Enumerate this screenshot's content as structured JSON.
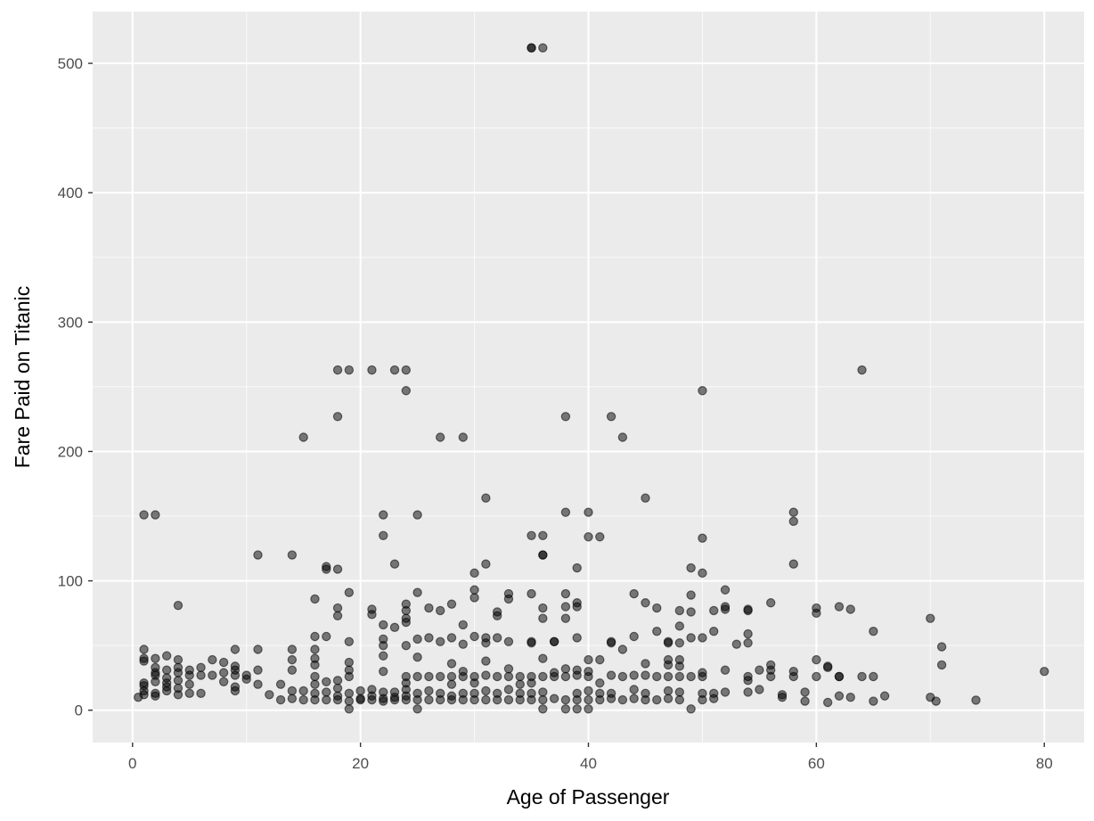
{
  "chart_data": {
    "type": "scatter",
    "title": "",
    "xlabel": "Age of Passenger",
    "ylabel": "Fare Paid on Titanic",
    "xlim": [
      -3.5,
      83.5
    ],
    "ylim": [
      -25,
      540
    ],
    "x_ticks": [
      0,
      20,
      40,
      60,
      80
    ],
    "y_ticks": [
      0,
      100,
      200,
      300,
      400,
      500
    ],
    "x_tick_labels": [
      "0",
      "20",
      "40",
      "60",
      "80"
    ],
    "y_tick_labels": [
      "0",
      "100",
      "200",
      "300",
      "400",
      "500"
    ],
    "grid": true,
    "legend": "none",
    "colors": {
      "panel": "#ebebeb",
      "grid_major": "#ffffff",
      "point": "#000000"
    },
    "point_alpha": 0.5,
    "points": [
      [
        35,
        512
      ],
      [
        35,
        512
      ],
      [
        36,
        512
      ],
      [
        18,
        263
      ],
      [
        19,
        263
      ],
      [
        21,
        263
      ],
      [
        23,
        263
      ],
      [
        24,
        263
      ],
      [
        64,
        263
      ],
      [
        24,
        247
      ],
      [
        50,
        247
      ],
      [
        18,
        227
      ],
      [
        38,
        227
      ],
      [
        42,
        227
      ],
      [
        15,
        211
      ],
      [
        27,
        211
      ],
      [
        29,
        211
      ],
      [
        43,
        211
      ],
      [
        31,
        164
      ],
      [
        45,
        164
      ],
      [
        1,
        151
      ],
      [
        2,
        151
      ],
      [
        22,
        151
      ],
      [
        25,
        151
      ],
      [
        38,
        153
      ],
      [
        40,
        153
      ],
      [
        58,
        153
      ],
      [
        58,
        146
      ],
      [
        22,
        135
      ],
      [
        35,
        135
      ],
      [
        36,
        135
      ],
      [
        40,
        134
      ],
      [
        41,
        134
      ],
      [
        50,
        133
      ],
      [
        11,
        120
      ],
      [
        14,
        120
      ],
      [
        36,
        120
      ],
      [
        36,
        120
      ],
      [
        23,
        113
      ],
      [
        31,
        113
      ],
      [
        58,
        113
      ],
      [
        17,
        111
      ],
      [
        17,
        109
      ],
      [
        18,
        109
      ],
      [
        39,
        110
      ],
      [
        49,
        110
      ],
      [
        30,
        106
      ],
      [
        50,
        106
      ],
      [
        52,
        93
      ],
      [
        30,
        93
      ],
      [
        19,
        91
      ],
      [
        25,
        91
      ],
      [
        44,
        90
      ],
      [
        49,
        89
      ],
      [
        30,
        87
      ],
      [
        16,
        86
      ],
      [
        33,
        90
      ],
      [
        33,
        86
      ],
      [
        35,
        90
      ],
      [
        38,
        90
      ],
      [
        39,
        83
      ],
      [
        39,
        80
      ],
      [
        45,
        83
      ],
      [
        4,
        81
      ],
      [
        18,
        79
      ],
      [
        18,
        73
      ],
      [
        21,
        78
      ],
      [
        21,
        74
      ],
      [
        24,
        82
      ],
      [
        24,
        77
      ],
      [
        24,
        71
      ],
      [
        24,
        68
      ],
      [
        26,
        79
      ],
      [
        27,
        77
      ],
      [
        28,
        82
      ],
      [
        32,
        76
      ],
      [
        32,
        73
      ],
      [
        36,
        79
      ],
      [
        36,
        71
      ],
      [
        38,
        80
      ],
      [
        38,
        71
      ],
      [
        46,
        79
      ],
      [
        48,
        77
      ],
      [
        49,
        76
      ],
      [
        51,
        77
      ],
      [
        52,
        78
      ],
      [
        52,
        80
      ],
      [
        54,
        78
      ],
      [
        54,
        77
      ],
      [
        56,
        83
      ],
      [
        60,
        79
      ],
      [
        60,
        75
      ],
      [
        62,
        80
      ],
      [
        63,
        78
      ],
      [
        70,
        71
      ],
      [
        22,
        66
      ],
      [
        29,
        66
      ],
      [
        42,
        52
      ],
      [
        42,
        53
      ],
      [
        43,
        47
      ],
      [
        44,
        57
      ],
      [
        46,
        61
      ],
      [
        47,
        53
      ],
      [
        47,
        52
      ],
      [
        48,
        52
      ],
      [
        48,
        65
      ],
      [
        49,
        56
      ],
      [
        50,
        56
      ],
      [
        51,
        61
      ],
      [
        53,
        51
      ],
      [
        54,
        52
      ],
      [
        54,
        59
      ],
      [
        65,
        61
      ],
      [
        71,
        49
      ],
      [
        71,
        35
      ],
      [
        16,
        57
      ],
      [
        17,
        57
      ],
      [
        19,
        53
      ],
      [
        22,
        55
      ],
      [
        22,
        50
      ],
      [
        23,
        64
      ],
      [
        24,
        50
      ],
      [
        25,
        55
      ],
      [
        26,
        56
      ],
      [
        27,
        53
      ],
      [
        28,
        56
      ],
      [
        29,
        51
      ],
      [
        30,
        57
      ],
      [
        31,
        56
      ],
      [
        31,
        52
      ],
      [
        32,
        56
      ],
      [
        33,
        53
      ],
      [
        35,
        53
      ],
      [
        35,
        52
      ],
      [
        37,
        53
      ],
      [
        37,
        53
      ],
      [
        39,
        56
      ],
      [
        1,
        47
      ],
      [
        1,
        40
      ],
      [
        1,
        38
      ],
      [
        2,
        40
      ],
      [
        2,
        33
      ],
      [
        3,
        42
      ],
      [
        3,
        31
      ],
      [
        4,
        39
      ],
      [
        4,
        33
      ],
      [
        5,
        31
      ],
      [
        6,
        33
      ],
      [
        7,
        39
      ],
      [
        8,
        37
      ],
      [
        9,
        47
      ],
      [
        9,
        34
      ],
      [
        9,
        31
      ],
      [
        11,
        47
      ],
      [
        11,
        31
      ],
      [
        14,
        47
      ],
      [
        14,
        39
      ],
      [
        14,
        31
      ],
      [
        16,
        47
      ],
      [
        16,
        40
      ],
      [
        16,
        35
      ],
      [
        19,
        37
      ],
      [
        19,
        31
      ],
      [
        22,
        42
      ],
      [
        22,
        30
      ],
      [
        25,
        41
      ],
      [
        28,
        36
      ],
      [
        31,
        38
      ],
      [
        33,
        32
      ],
      [
        36,
        40
      ],
      [
        38,
        32
      ],
      [
        39,
        31
      ],
      [
        40,
        39
      ],
      [
        41,
        39
      ],
      [
        45,
        36
      ],
      [
        47,
        39
      ],
      [
        47,
        35
      ],
      [
        48,
        39
      ],
      [
        48,
        34
      ],
      [
        50,
        29
      ],
      [
        52,
        31
      ],
      [
        55,
        31
      ],
      [
        56,
        35
      ],
      [
        56,
        31
      ],
      [
        58,
        30
      ],
      [
        60,
        39
      ],
      [
        61,
        34
      ],
      [
        61,
        33
      ],
      [
        62,
        26
      ],
      [
        64,
        26
      ],
      [
        65,
        26
      ],
      [
        80,
        30
      ],
      [
        0.5,
        10
      ],
      [
        1,
        21
      ],
      [
        1,
        19
      ],
      [
        1,
        15
      ],
      [
        1,
        12
      ],
      [
        2,
        29
      ],
      [
        2,
        27
      ],
      [
        2,
        22
      ],
      [
        2,
        13
      ],
      [
        2,
        11
      ],
      [
        3,
        25
      ],
      [
        3,
        21
      ],
      [
        3,
        18
      ],
      [
        3,
        15
      ],
      [
        4,
        29
      ],
      [
        4,
        23
      ],
      [
        4,
        17
      ],
      [
        4,
        12
      ],
      [
        5,
        27
      ],
      [
        5,
        20
      ],
      [
        5,
        13
      ],
      [
        6,
        27
      ],
      [
        6,
        13
      ],
      [
        7,
        27
      ],
      [
        8,
        29
      ],
      [
        8,
        22
      ],
      [
        9,
        27
      ],
      [
        9,
        18
      ],
      [
        9,
        15
      ],
      [
        10,
        27
      ],
      [
        10,
        24
      ],
      [
        11,
        20
      ],
      [
        12,
        12
      ],
      [
        13,
        8
      ],
      [
        13,
        20
      ],
      [
        14,
        15
      ],
      [
        14,
        9
      ],
      [
        15,
        15
      ],
      [
        15,
        8
      ],
      [
        16,
        26
      ],
      [
        16,
        20
      ],
      [
        16,
        13
      ],
      [
        16,
        8
      ],
      [
        17,
        22
      ],
      [
        17,
        14
      ],
      [
        17,
        8
      ],
      [
        18,
        23
      ],
      [
        18,
        17
      ],
      [
        18,
        11
      ],
      [
        18,
        8
      ],
      [
        19,
        26
      ],
      [
        19,
        13
      ],
      [
        19,
        7
      ],
      [
        19,
        1
      ],
      [
        20,
        15
      ],
      [
        20,
        8
      ],
      [
        20,
        9
      ],
      [
        21,
        16
      ],
      [
        21,
        11
      ],
      [
        21,
        8
      ],
      [
        22,
        14
      ],
      [
        22,
        9
      ],
      [
        22,
        7
      ],
      [
        23,
        14
      ],
      [
        23,
        10
      ],
      [
        23,
        8
      ],
      [
        24,
        26
      ],
      [
        24,
        21
      ],
      [
        24,
        16
      ],
      [
        24,
        11
      ],
      [
        24,
        8
      ],
      [
        25,
        26
      ],
      [
        25,
        13
      ],
      [
        25,
        8
      ],
      [
        25,
        1
      ],
      [
        26,
        26
      ],
      [
        26,
        15
      ],
      [
        26,
        8
      ],
      [
        27,
        26
      ],
      [
        27,
        13
      ],
      [
        27,
        8
      ],
      [
        28,
        26
      ],
      [
        28,
        20
      ],
      [
        28,
        11
      ],
      [
        28,
        8
      ],
      [
        29,
        30
      ],
      [
        29,
        26
      ],
      [
        29,
        13
      ],
      [
        29,
        8
      ],
      [
        30,
        26
      ],
      [
        30,
        21
      ],
      [
        30,
        13
      ],
      [
        30,
        8
      ],
      [
        31,
        27
      ],
      [
        31,
        15
      ],
      [
        31,
        8
      ],
      [
        32,
        26
      ],
      [
        32,
        13
      ],
      [
        32,
        8
      ],
      [
        33,
        26
      ],
      [
        33,
        16
      ],
      [
        33,
        8
      ],
      [
        34,
        26
      ],
      [
        34,
        20
      ],
      [
        34,
        13
      ],
      [
        34,
        8
      ],
      [
        35,
        26
      ],
      [
        35,
        21
      ],
      [
        35,
        13
      ],
      [
        35,
        8
      ],
      [
        36,
        26
      ],
      [
        36,
        14
      ],
      [
        36,
        8
      ],
      [
        36,
        1
      ],
      [
        37,
        29
      ],
      [
        37,
        26
      ],
      [
        37,
        9
      ],
      [
        38,
        26
      ],
      [
        38,
        8
      ],
      [
        38,
        1
      ],
      [
        39,
        27
      ],
      [
        39,
        13
      ],
      [
        39,
        8
      ],
      [
        39,
        1
      ],
      [
        40,
        30
      ],
      [
        40,
        26
      ],
      [
        40,
        15
      ],
      [
        40,
        8
      ],
      [
        40,
        1
      ],
      [
        41,
        21
      ],
      [
        41,
        13
      ],
      [
        41,
        8
      ],
      [
        42,
        27
      ],
      [
        42,
        13
      ],
      [
        42,
        9
      ],
      [
        43,
        26
      ],
      [
        43,
        8
      ],
      [
        44,
        27
      ],
      [
        44,
        16
      ],
      [
        44,
        9
      ],
      [
        45,
        27
      ],
      [
        45,
        13
      ],
      [
        45,
        8
      ],
      [
        46,
        26
      ],
      [
        46,
        8
      ],
      [
        47,
        26
      ],
      [
        47,
        15
      ],
      [
        47,
        9
      ],
      [
        48,
        26
      ],
      [
        48,
        14
      ],
      [
        48,
        8
      ],
      [
        49,
        26
      ],
      [
        49,
        1
      ],
      [
        50,
        26
      ],
      [
        50,
        13
      ],
      [
        50,
        8
      ],
      [
        51,
        13
      ],
      [
        51,
        9
      ],
      [
        52,
        14
      ],
      [
        54,
        23
      ],
      [
        54,
        14
      ],
      [
        54,
        26
      ],
      [
        55,
        16
      ],
      [
        56,
        26
      ],
      [
        57,
        12
      ],
      [
        57,
        10
      ],
      [
        58,
        26
      ],
      [
        59,
        14
      ],
      [
        59,
        7
      ],
      [
        60,
        26
      ],
      [
        61,
        6
      ],
      [
        62,
        26
      ],
      [
        62,
        11
      ],
      [
        63,
        10
      ],
      [
        65,
        7
      ],
      [
        66,
        11
      ],
      [
        70,
        10
      ],
      [
        70.5,
        7
      ],
      [
        74,
        7.8
      ]
    ]
  }
}
